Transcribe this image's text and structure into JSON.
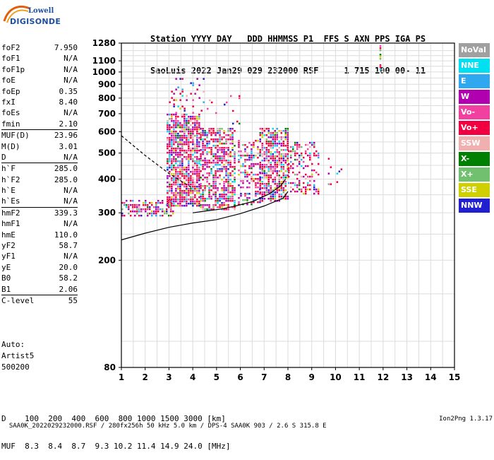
{
  "logo": {
    "line1": "Lowell",
    "line2": "DIGISONDE"
  },
  "header": {
    "line1": "Station YYYY DAY   DDD HHMMSS P1  FFS S AXN PPS IGA PS",
    "line2": "SaoLuis 2022 Jan29 029 232000 RSF     1 715 100 00- 11"
  },
  "params": [
    {
      "label": "foF2",
      "value": "7.950"
    },
    {
      "label": "foF1",
      "value": "N/A"
    },
    {
      "label": "foF1p",
      "value": "N/A"
    },
    {
      "label": "foE",
      "value": "N/A"
    },
    {
      "label": "foEp",
      "value": "0.35"
    },
    {
      "label": "fxI",
      "value": "8.40"
    },
    {
      "label": "foEs",
      "value": "N/A"
    },
    {
      "label": "fmin",
      "value": "2.10"
    },
    {
      "label": "MUF(D)",
      "value": "23.96",
      "sep": true
    },
    {
      "label": "M(D)",
      "value": "3.01"
    },
    {
      "label": "D",
      "value": "N/A"
    },
    {
      "label": "h`F",
      "value": "285.0",
      "sep": true
    },
    {
      "label": "h`F2",
      "value": "285.0"
    },
    {
      "label": "h`E",
      "value": "N/A"
    },
    {
      "label": "h`Es",
      "value": "N/A"
    },
    {
      "label": "hmF2",
      "value": "339.3",
      "sep": true
    },
    {
      "label": "hmF1",
      "value": "N/A"
    },
    {
      "label": "hmE",
      "value": "110.0"
    },
    {
      "label": "yF2",
      "value": "58.7"
    },
    {
      "label": "yF1",
      "value": "N/A"
    },
    {
      "label": "yE",
      "value": "20.0"
    },
    {
      "label": "B0",
      "value": "58.2"
    },
    {
      "label": "B1",
      "value": "2.06"
    },
    {
      "label": "C-level",
      "value": "55",
      "sep": true
    }
  ],
  "auto": {
    "line1": "Auto:",
    "line2": "Artist5",
    "line3": "500200"
  },
  "muf": {
    "line1": "D    100  200  400  600  800 1000 1500 3000 [km]",
    "line2": "MUF  8.3  8.4  8.7  9.3 10.2 11.4 14.9 24.0 [MHz]"
  },
  "footer": {
    "left": "SAA0K_2022029232000.RSF / 280fx256h 50 kHz 5.0 km / DPS-4 SAA0K 903 / 2.6 S 315.8 E",
    "right": "Ion2Png 1.3.17"
  },
  "legend": [
    {
      "label": "NoVal",
      "color": "#a0a0a0"
    },
    {
      "label": "NNE",
      "color": "#00e0f0"
    },
    {
      "label": "E",
      "color": "#30a8f0"
    },
    {
      "label": "W",
      "color": "#b000b0"
    },
    {
      "label": "Vo-",
      "color": "#f040a0"
    },
    {
      "label": "Vo+",
      "color": "#f00040"
    },
    {
      "label": "SSW",
      "color": "#f0b0b0"
    },
    {
      "label": "X-",
      "color": "#008000"
    },
    {
      "label": "X+",
      "color": "#70c070"
    },
    {
      "label": "SSE",
      "color": "#d0d000"
    },
    {
      "label": "NNW",
      "color": "#2020d0"
    }
  ],
  "chart_data": {
    "type": "scatter",
    "xlim": [
      1,
      15
    ],
    "ylim": [
      80,
      1280
    ],
    "y_scale": "log",
    "grid": true,
    "x_ticks": [
      "1",
      "2",
      "3",
      "4",
      "5",
      "6",
      "7",
      "8",
      "9",
      "10",
      "11",
      "12",
      "13",
      "14",
      "15"
    ],
    "y_ticks": [
      {
        "label": "80",
        "value": 80
      },
      {
        "label": "200",
        "value": 200
      },
      {
        "label": "300",
        "value": 300
      },
      {
        "label": "400",
        "value": 400
      },
      {
        "label": "500",
        "value": 500
      },
      {
        "label": "600",
        "value": 600
      },
      {
        "label": "700",
        "value": 700
      },
      {
        "label": "800",
        "value": 800
      },
      {
        "label": "900",
        "value": 900
      },
      {
        "label": "1000",
        "value": 1000
      },
      {
        "label": "1100",
        "value": 1100
      },
      {
        "label": "1280",
        "value": 1280
      }
    ],
    "clusters": [
      {
        "x": [
          1.0,
          3.2
        ],
        "y": [
          290,
          335
        ],
        "density": 0.55
      },
      {
        "x": [
          2.9,
          4.3
        ],
        "y": [
          320,
          700
        ],
        "density": 0.75
      },
      {
        "x": [
          4.3,
          5.8
        ],
        "y": [
          310,
          620
        ],
        "density": 0.6
      },
      {
        "x": [
          5.9,
          6.8
        ],
        "y": [
          320,
          560
        ],
        "density": 0.4
      },
      {
        "x": [
          6.8,
          8.0
        ],
        "y": [
          330,
          620
        ],
        "density": 0.65
      },
      {
        "x": [
          8.0,
          9.3
        ],
        "y": [
          350,
          550
        ],
        "density": 0.35
      },
      {
        "x": [
          9.5,
          10.6
        ],
        "y": [
          380,
          480
        ],
        "density": 0.08
      },
      {
        "x": [
          3.0,
          4.5
        ],
        "y": [
          700,
          950
        ],
        "density": 0.12
      },
      {
        "x": [
          4.5,
          6.0
        ],
        "y": [
          640,
          820
        ],
        "density": 0.06
      },
      {
        "x": [
          11.85,
          11.9
        ],
        "y": [
          1020,
          1280
        ],
        "density": 0.6
      }
    ],
    "trace_x": [
      1,
      2,
      3,
      4,
      5,
      6,
      7,
      7.8,
      8.0
    ],
    "trace_y": [
      238,
      252,
      265,
      275,
      283,
      298,
      318,
      340,
      360
    ],
    "trace2_x": [
      4.0,
      4.6,
      5.2,
      5.8,
      6.5,
      7.2,
      7.7,
      7.9
    ],
    "trace2_y": [
      300,
      305,
      310,
      318,
      330,
      352,
      378,
      400
    ],
    "trace3_x": [
      1.0,
      2.0,
      3.0,
      4.0
    ],
    "trace3_y": [
      580,
      490,
      420,
      370
    ]
  }
}
